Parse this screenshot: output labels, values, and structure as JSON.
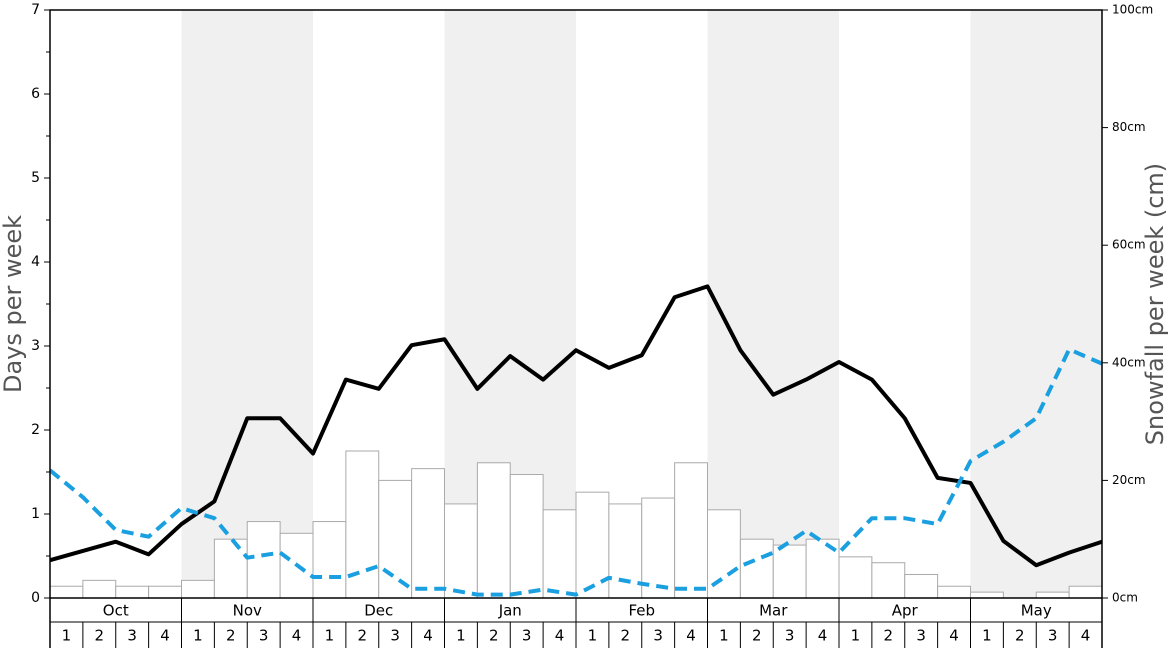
{
  "chart_data": {
    "type": "bar",
    "ylabel": "Days per week",
    "y2label": "Snowfall per week (cm)",
    "ylim": [
      0,
      7
    ],
    "yticks": [
      0,
      1,
      2,
      3,
      4,
      5,
      6,
      7
    ],
    "yminorticks": [
      0.5,
      1.5,
      2.5,
      3.5,
      4.5,
      5.5,
      6.5
    ],
    "y2lim": [
      0,
      100
    ],
    "y2ticks": [
      {
        "value": 0,
        "label": "0cm"
      },
      {
        "value": 20,
        "label": "20cm"
      },
      {
        "value": 40,
        "label": "40cm"
      },
      {
        "value": 60,
        "label": "60cm"
      },
      {
        "value": 80,
        "label": "80cm"
      },
      {
        "value": 100,
        "label": "100cm"
      }
    ],
    "months": [
      "Oct",
      "Nov",
      "Dec",
      "Jan",
      "Feb",
      "Mar",
      "Apr",
      "May"
    ],
    "band_color": "#f0f0f0",
    "categories": [
      "1",
      "2",
      "3",
      "4",
      "1",
      "2",
      "3",
      "4",
      "1",
      "2",
      "3",
      "4",
      "1",
      "2",
      "3",
      "4",
      "1",
      "2",
      "3",
      "4",
      "1",
      "2",
      "3",
      "4",
      "1",
      "2",
      "3",
      "4",
      "1",
      "2",
      "3",
      "4"
    ],
    "bars": {
      "axis": "y2",
      "color": "#ffffff",
      "stroke": "#aaaaaa",
      "values": [
        2,
        3,
        2,
        2,
        3,
        10,
        13,
        11,
        13,
        25,
        20,
        22,
        16,
        23,
        21,
        15,
        18,
        16,
        17,
        23,
        15,
        10,
        9,
        10,
        7,
        6,
        4,
        2,
        1,
        0,
        1,
        2
      ]
    },
    "xlim": [
      0,
      32
    ],
    "x": [
      0,
      1,
      2,
      3,
      4,
      5,
      6,
      7,
      8,
      9,
      10,
      11,
      12,
      13,
      14,
      15,
      16,
      17,
      18,
      19,
      20,
      21,
      22,
      23,
      24,
      25,
      26,
      27,
      28,
      29,
      30,
      31,
      32
    ],
    "series": [
      {
        "color": "#000000",
        "dashed": false,
        "values": [
          0.45,
          0.56,
          0.67,
          0.52,
          0.88,
          1.15,
          2.14,
          2.14,
          1.72,
          2.6,
          2.49,
          3.01,
          3.08,
          2.49,
          2.88,
          2.6,
          2.95,
          2.74,
          2.89,
          3.58,
          3.71,
          2.95,
          2.42,
          2.6,
          2.81,
          2.6,
          2.14,
          1.43,
          1.37,
          0.68,
          0.39,
          0.54,
          0.67
        ]
      },
      {
        "color": "#1a9fe0",
        "dashed": true,
        "values": [
          1.52,
          1.2,
          0.81,
          0.73,
          1.07,
          0.95,
          0.48,
          0.54,
          0.25,
          0.25,
          0.38,
          0.11,
          0.11,
          0.04,
          0.04,
          0.1,
          0.04,
          0.24,
          0.17,
          0.11,
          0.11,
          0.38,
          0.54,
          0.8,
          0.54,
          0.95,
          0.95,
          0.88,
          1.63,
          1.86,
          2.14,
          2.96,
          2.79
        ]
      }
    ]
  }
}
